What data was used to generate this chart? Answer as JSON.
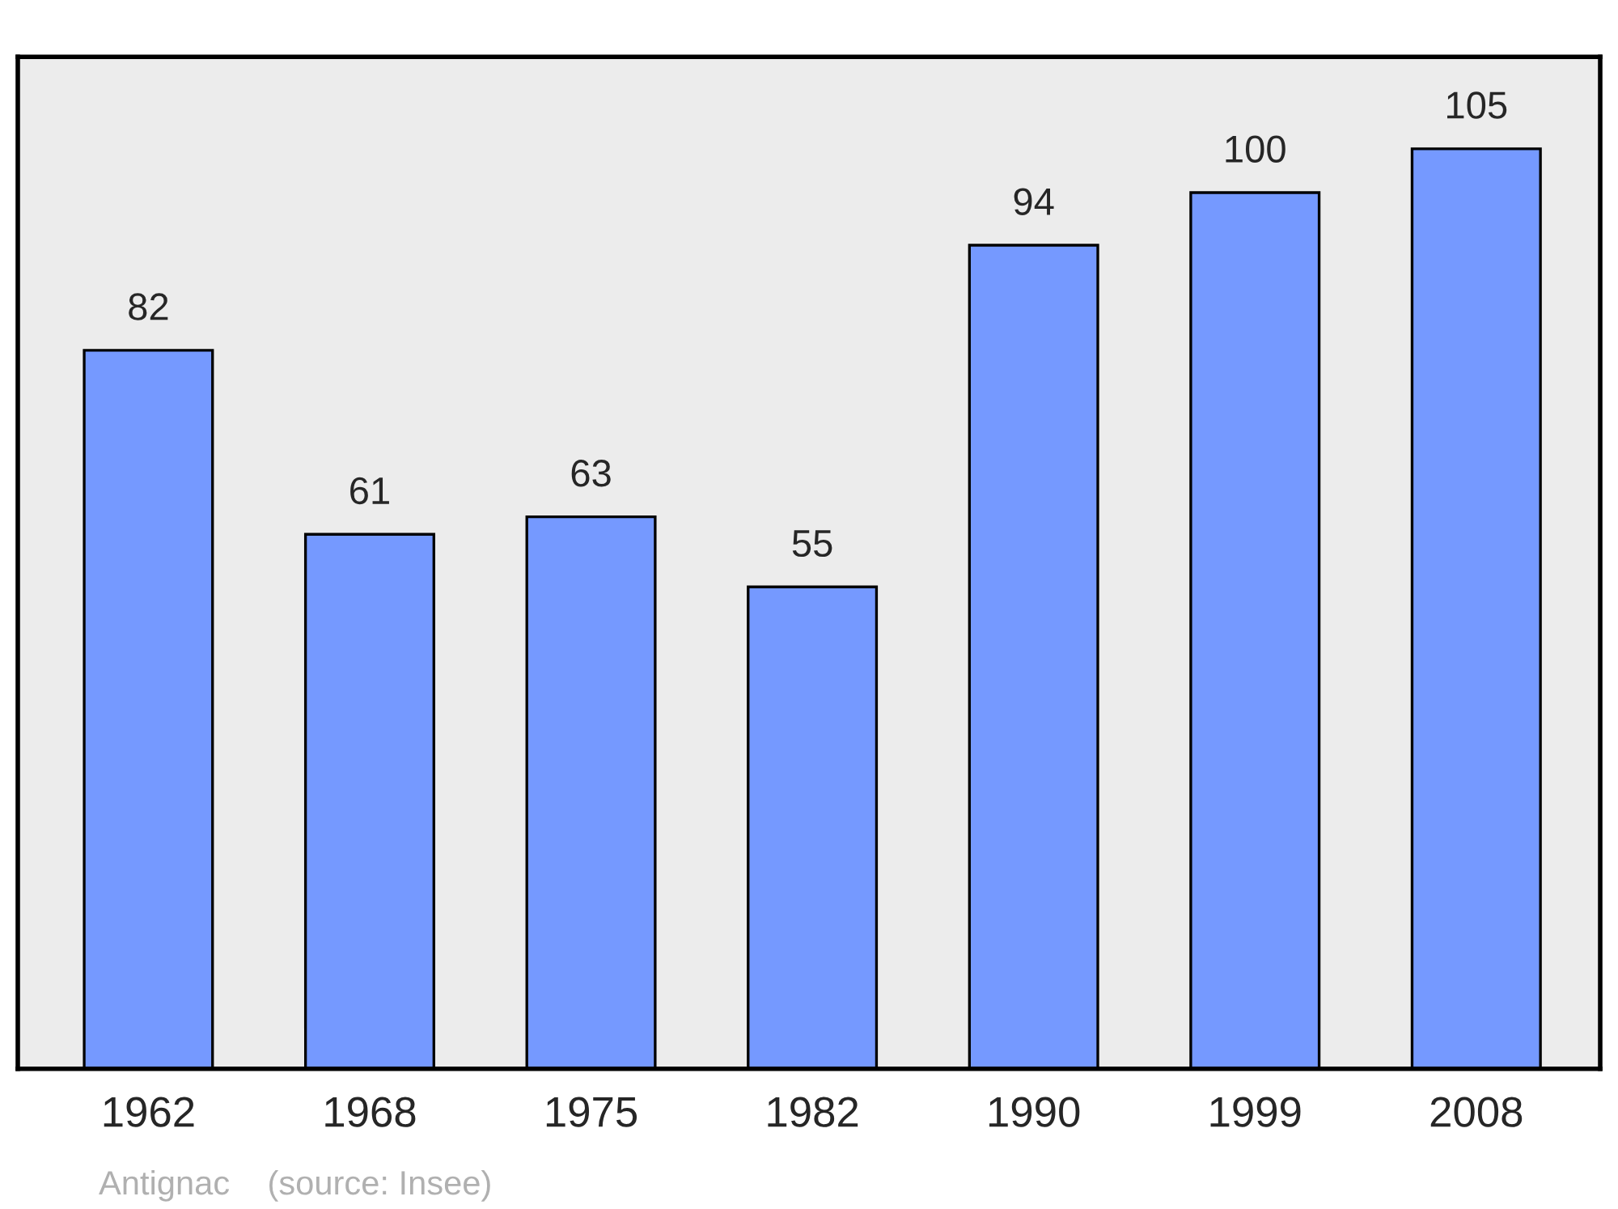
{
  "chart_data": {
    "type": "bar",
    "categories": [
      "1962",
      "1968",
      "1975",
      "1982",
      "1990",
      "1999",
      "2008"
    ],
    "values": [
      82,
      61,
      63,
      55,
      94,
      100,
      105
    ],
    "color": "#7599ff",
    "data_labels": true,
    "tick_labels": "x",
    "grid": false,
    "annotations": [
      "Antignac    (source: Insee)"
    ]
  }
}
